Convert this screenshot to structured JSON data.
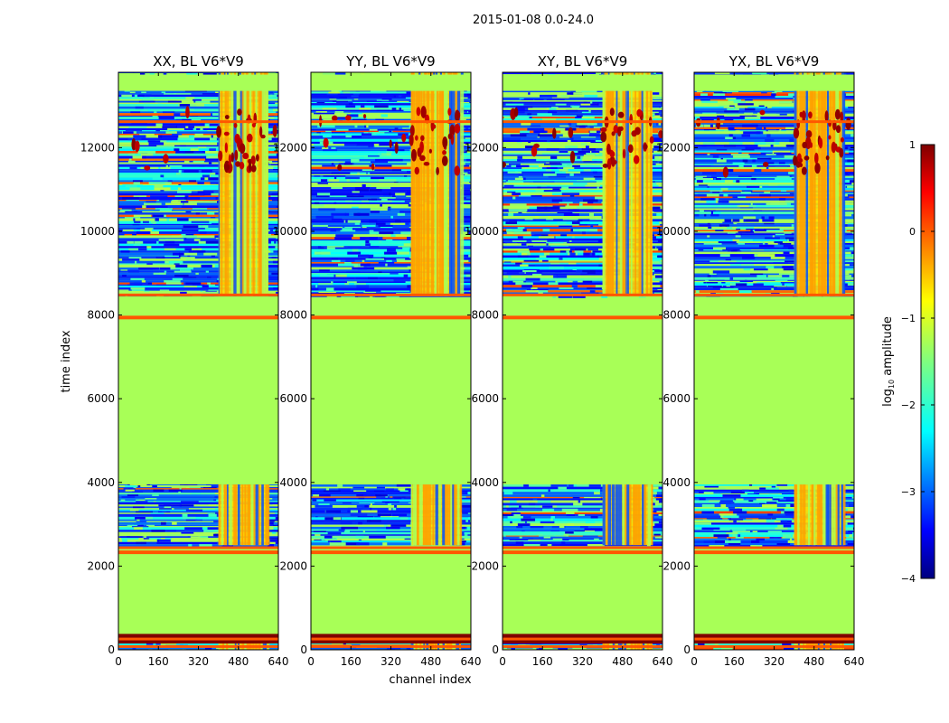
{
  "figure_title": "2015-01-08 0.0-24.0",
  "chart_data": {
    "type": "heatmap",
    "title": "2015-01-08 0.0-24.0",
    "xlabel": "channel index",
    "ylabel": "time index",
    "xlim": [
      0,
      640
    ],
    "ylim": [
      0,
      13800
    ],
    "xticks": [
      0,
      160,
      320,
      480,
      640
    ],
    "yticks": [
      0,
      2000,
      4000,
      6000,
      8000,
      10000,
      12000
    ],
    "panels": [
      {
        "title": "XX, BL V6*V9",
        "pol": "XX"
      },
      {
        "title": "YY, BL V6*V9",
        "pol": "YY"
      },
      {
        "title": "XY, BL V6*V9",
        "pol": "XY"
      },
      {
        "title": "YX, BL V6*V9",
        "pol": "YX"
      }
    ],
    "colorbar": {
      "label": "log10 amplitude",
      "label_base": "log",
      "label_sub": "10",
      "label_rest": " amplitude",
      "range": [
        -4,
        1
      ],
      "ticks": [
        1,
        0,
        -1,
        -2,
        -3,
        -4
      ],
      "tick_labels": [
        "1",
        "0",
        "−1",
        "−2",
        "−3",
        "−4"
      ],
      "colormap": "jet"
    },
    "bright_band_channels": [
      400,
      600
    ],
    "time_structure": [
      {
        "from": 0,
        "to": 150,
        "desc": "mixed"
      },
      {
        "from": 150,
        "to": 380,
        "desc": "flagged strip"
      },
      {
        "from": 380,
        "to": 2300,
        "desc": "constant"
      },
      {
        "from": 2300,
        "to": 2400,
        "desc": "flagged line"
      },
      {
        "from": 2500,
        "to": 3950,
        "desc": "data"
      },
      {
        "from": 3950,
        "to": 7900,
        "desc": "constant"
      },
      {
        "from": 7900,
        "to": 7980,
        "desc": "flagged line"
      },
      {
        "from": 7980,
        "to": 8450,
        "desc": "constant"
      },
      {
        "from": 8450,
        "to": 13800,
        "desc": "data"
      }
    ]
  }
}
